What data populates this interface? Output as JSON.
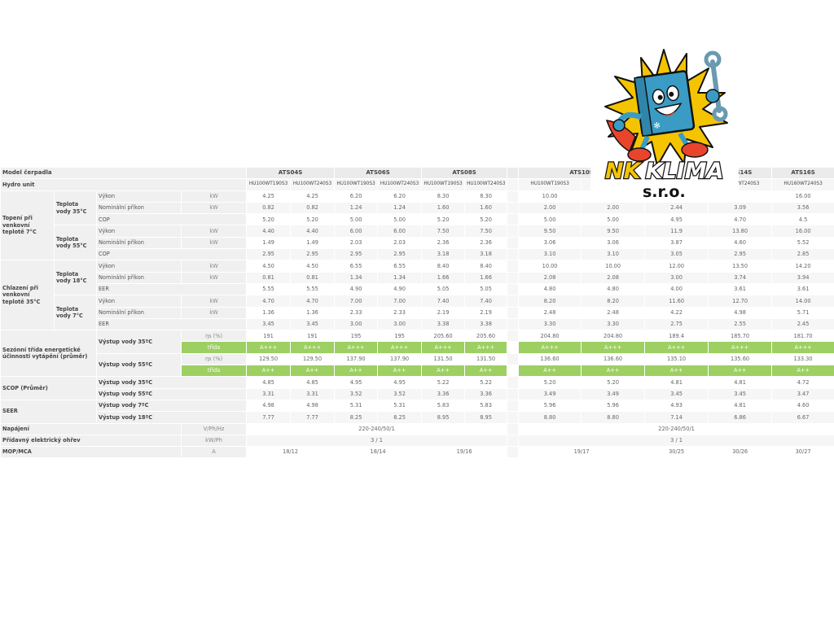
{
  "header": {
    "model_label": "Model čerpadla",
    "hydro_label": "Hydro unit",
    "models": [
      {
        "name": "ATS04S",
        "units": [
          "HU100WT190S3",
          "HU100WT240S3"
        ]
      },
      {
        "name": "ATS06S",
        "units": [
          "HU100WT190S3",
          "HU100WT240S3"
        ]
      },
      {
        "name": "ATS08S",
        "units": [
          "HU100WT190S3",
          "HU100WT240S3"
        ]
      },
      {
        "name": "ATS10S",
        "units": [
          "HU100WT190S3",
          ""
        ]
      },
      {
        "name": "",
        "units": [
          ""
        ]
      },
      {
        "name": "ATS14S",
        "units": [
          "HU140WT240S3"
        ]
      },
      {
        "name": "ATS16S",
        "units": [
          "HU160WT240S3"
        ]
      }
    ]
  },
  "heating": {
    "label": "Topení při venkovní teplotě 7°C",
    "groups": [
      {
        "label": "Teplota vody 35°C",
        "rows": [
          {
            "param": "Výkon",
            "unit": "kW",
            "values": [
              "4.25",
              "4.25",
              "6.20",
              "6.20",
              "8.30",
              "8.30",
              "10.00",
              "",
              "",
              "",
              "16.00"
            ]
          },
          {
            "param": "Nominální příkon",
            "unit": "kW",
            "values": [
              "0.82",
              "0.82",
              "1.24",
              "1.24",
              "1.60",
              "1.60",
              "2.00",
              "2.00",
              "2.44",
              "3.09",
              "3.56"
            ]
          },
          {
            "param": "COP",
            "unit": "",
            "values": [
              "5.20",
              "5.20",
              "5.00",
              "5.00",
              "5.20",
              "5.20",
              "5.00",
              "5.00",
              "4.95",
              "4.70",
              "4.5"
            ]
          }
        ]
      },
      {
        "label": "Teplota vody 55°C",
        "rows": [
          {
            "param": "Výkon",
            "unit": "kW",
            "values": [
              "4.40",
              "4.40",
              "6.00",
              "6.00",
              "7.50",
              "7.50",
              "9.50",
              "9.50",
              "11.9",
              "13.80",
              "16.00"
            ]
          },
          {
            "param": "Nominální příkon",
            "unit": "kW",
            "values": [
              "1.49",
              "1.49",
              "2.03",
              "2.03",
              "2.36",
              "2.36",
              "3.06",
              "3.06",
              "3.87",
              "4.60",
              "5.52"
            ]
          },
          {
            "param": "COP",
            "unit": "",
            "values": [
              "2.95",
              "2.95",
              "2.95",
              "2.95",
              "3.18",
              "3.18",
              "3.10",
              "3.10",
              "3.05",
              "2.95",
              "2.85"
            ]
          }
        ]
      }
    ]
  },
  "cooling": {
    "label": "Chlazení při venkovní teplotě 35°C",
    "groups": [
      {
        "label": "Teplota vody 18°C",
        "rows": [
          {
            "param": "Výkon",
            "unit": "kW",
            "values": [
              "4.50",
              "4.50",
              "6.55",
              "6.55",
              "8.40",
              "8.40",
              "10.00",
              "10.00",
              "12.00",
              "13.50",
              "14.20"
            ]
          },
          {
            "param": "Nominální příkon",
            "unit": "kW",
            "values": [
              "0.81",
              "0.81",
              "1.34",
              "1.34",
              "1.66",
              "1.66",
              "2.08",
              "2.08",
              "3.00",
              "3.74",
              "3.94"
            ]
          },
          {
            "param": "EER",
            "unit": "",
            "values": [
              "5.55",
              "5.55",
              "4.90",
              "4.90",
              "5.05",
              "5.05",
              "4.80",
              "4.80",
              "4.00",
              "3.61",
              "3.61"
            ]
          }
        ]
      },
      {
        "label": "Teplota vody 7°C",
        "rows": [
          {
            "param": "Výkon",
            "unit": "kW",
            "values": [
              "4.70",
              "4.70",
              "7.00",
              "7.00",
              "7.40",
              "7.40",
              "8.20",
              "8.20",
              "11.60",
              "12.70",
              "14.00"
            ]
          },
          {
            "param": "Nominální příkon",
            "unit": "kW",
            "values": [
              "1.36",
              "1.36",
              "2.33",
              "2.33",
              "2.19",
              "2.19",
              "2.48",
              "2.48",
              "4.22",
              "4.98",
              "5.71"
            ]
          },
          {
            "param": "EER",
            "unit": "",
            "values": [
              "3.45",
              "3.45",
              "3.00",
              "3.00",
              "3.38",
              "3.38",
              "3.30",
              "3.30",
              "2.75",
              "2.55",
              "2.45"
            ]
          }
        ]
      }
    ]
  },
  "seasonal": {
    "label": "Sezónní třída energetické účinnosti vytápění (průměr)",
    "groups": [
      {
        "label": "Výstup vody  35ºC",
        "rows": [
          {
            "unit": "ηs (%)",
            "values": [
              "191",
              "191",
              "195",
              "195",
              "205.60",
              "205.60",
              "204.80",
              "204.80",
              "189.4",
              "185.70",
              "181.70"
            ]
          },
          {
            "unit": "třída",
            "class_row": true,
            "values": [
              "A+++",
              "A+++",
              "A+++",
              "A+++",
              "A+++",
              "A+++",
              "A+++",
              "A+++",
              "A+++",
              "A+++",
              "A+++"
            ]
          }
        ]
      },
      {
        "label": "Výstup vody  55ºC",
        "rows": [
          {
            "unit": "ηs (%)",
            "values": [
              "129.50",
              "129.50",
              "137.90",
              "137.90",
              "131.50",
              "131.50",
              "136.60",
              "136.60",
              "135.10",
              "135.60",
              "133.30"
            ]
          },
          {
            "unit": "třída",
            "class_row": true,
            "values": [
              "A++",
              "A++",
              "A++",
              "A++",
              "A++",
              "A++",
              "A++",
              "A++",
              "A++",
              "A++",
              "A++"
            ]
          }
        ]
      }
    ]
  },
  "scop": {
    "label": "SCOP (Průměr)",
    "rows": [
      {
        "param": "Výstup vody  35ºC",
        "values": [
          "4.85",
          "4.85",
          "4.95",
          "4.95",
          "5.22",
          "5.22",
          "5.20",
          "5.20",
          "4.81",
          "4.81",
          "4.72"
        ]
      },
      {
        "param": "Výstup vody  55ºC",
        "values": [
          "3.31",
          "3.31",
          "3.52",
          "3.52",
          "3.36",
          "3.36",
          "3.49",
          "3.49",
          "3.45",
          "3.45",
          "3.47"
        ]
      }
    ]
  },
  "seer": {
    "label": "SEER",
    "rows": [
      {
        "param": "Výstup vody  7ºC",
        "values": [
          "4.98",
          "4.98",
          "5.31",
          "5.31",
          "5.83",
          "5.83",
          "5.96",
          "5.96",
          "4.93",
          "4.81",
          "4.60"
        ]
      },
      {
        "param": "Výstup vody  18ºC",
        "values": [
          "7.77",
          "7.77",
          "8.25",
          "8.25",
          "8.95",
          "8.95",
          "8.80",
          "8.80",
          "7.14",
          "6.86",
          "6.67"
        ]
      }
    ]
  },
  "footer_rows": [
    {
      "label": "Napájení",
      "unit": "V/Ph/Hz",
      "values": [
        "220-240/50/1",
        "220-240/50/1"
      ]
    },
    {
      "label": "Přídavný elektrický ohřev",
      "unit": "kW/Ph",
      "values": [
        "3 / 1",
        "3 / 1"
      ]
    },
    {
      "label": "MOP/MCA",
      "unit": "A",
      "values": [
        "18/12",
        "18/14",
        "19/16",
        "19/17",
        "30/25",
        "30/26",
        "30/27"
      ]
    }
  ],
  "logo": {
    "text": "NK KLIMA",
    "subtext": "s.r.o."
  },
  "colors": {
    "green": "#9dcf62",
    "label_bg": "#f0f0f0",
    "logo_yellow": "#f5c400",
    "logo_blue": "#3a9cc4"
  }
}
